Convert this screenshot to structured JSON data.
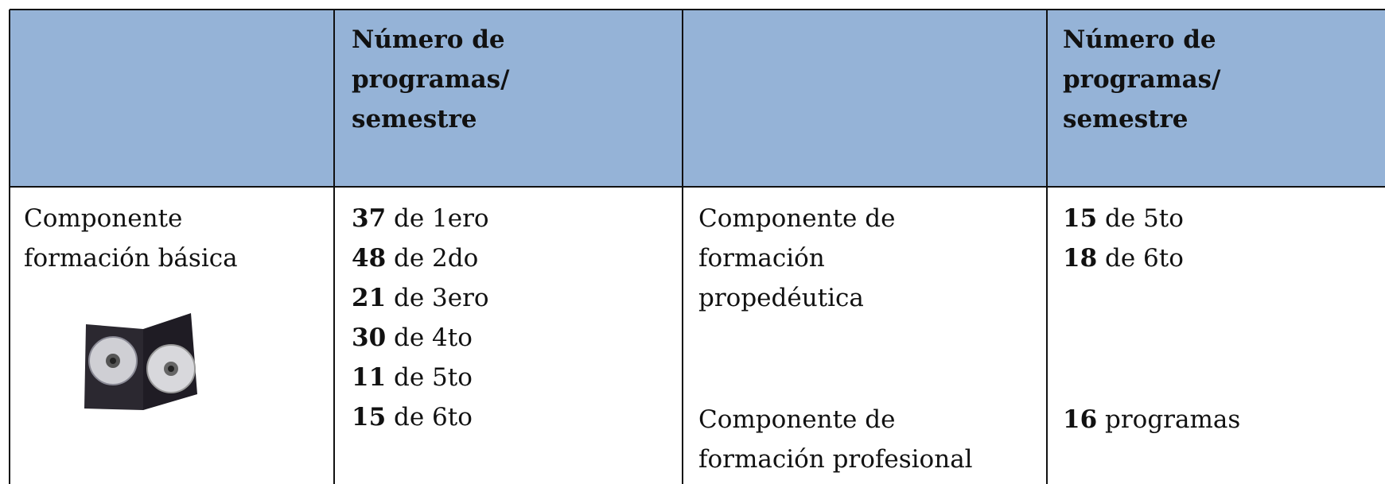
{
  "table": {
    "header": [
      {
        "lines": [
          "Número de",
          "programas/",
          "semestre"
        ]
      },
      {
        "lines": [
          "Número de",
          "programas/",
          "semestre"
        ]
      }
    ],
    "body": {
      "component_1": {
        "lines": [
          "Componente",
          "formación básica"
        ]
      },
      "programs_1": [
        {
          "number": 37,
          "text": "de 1ero"
        },
        {
          "number": 48,
          "text": "de 2do"
        },
        {
          "number": 21,
          "text": "de 3ero"
        },
        {
          "number": 30,
          "text": "de 4to"
        },
        {
          "number": 11,
          "text": "de 5to"
        },
        {
          "number": 15,
          "text": "de 6to"
        }
      ],
      "component_2": {
        "lines": [
          "Componente de",
          "formación",
          "propedéutica"
        ]
      },
      "component_3": {
        "lines": [
          "Componente de",
          "formación profesional"
        ]
      },
      "programs_2": [
        {
          "number": 15,
          "text": "de 5to"
        },
        {
          "number": 18,
          "text": "de 6to"
        }
      ],
      "programs_3": [
        {
          "number": 16,
          "text": "programas"
        }
      ]
    }
  }
}
